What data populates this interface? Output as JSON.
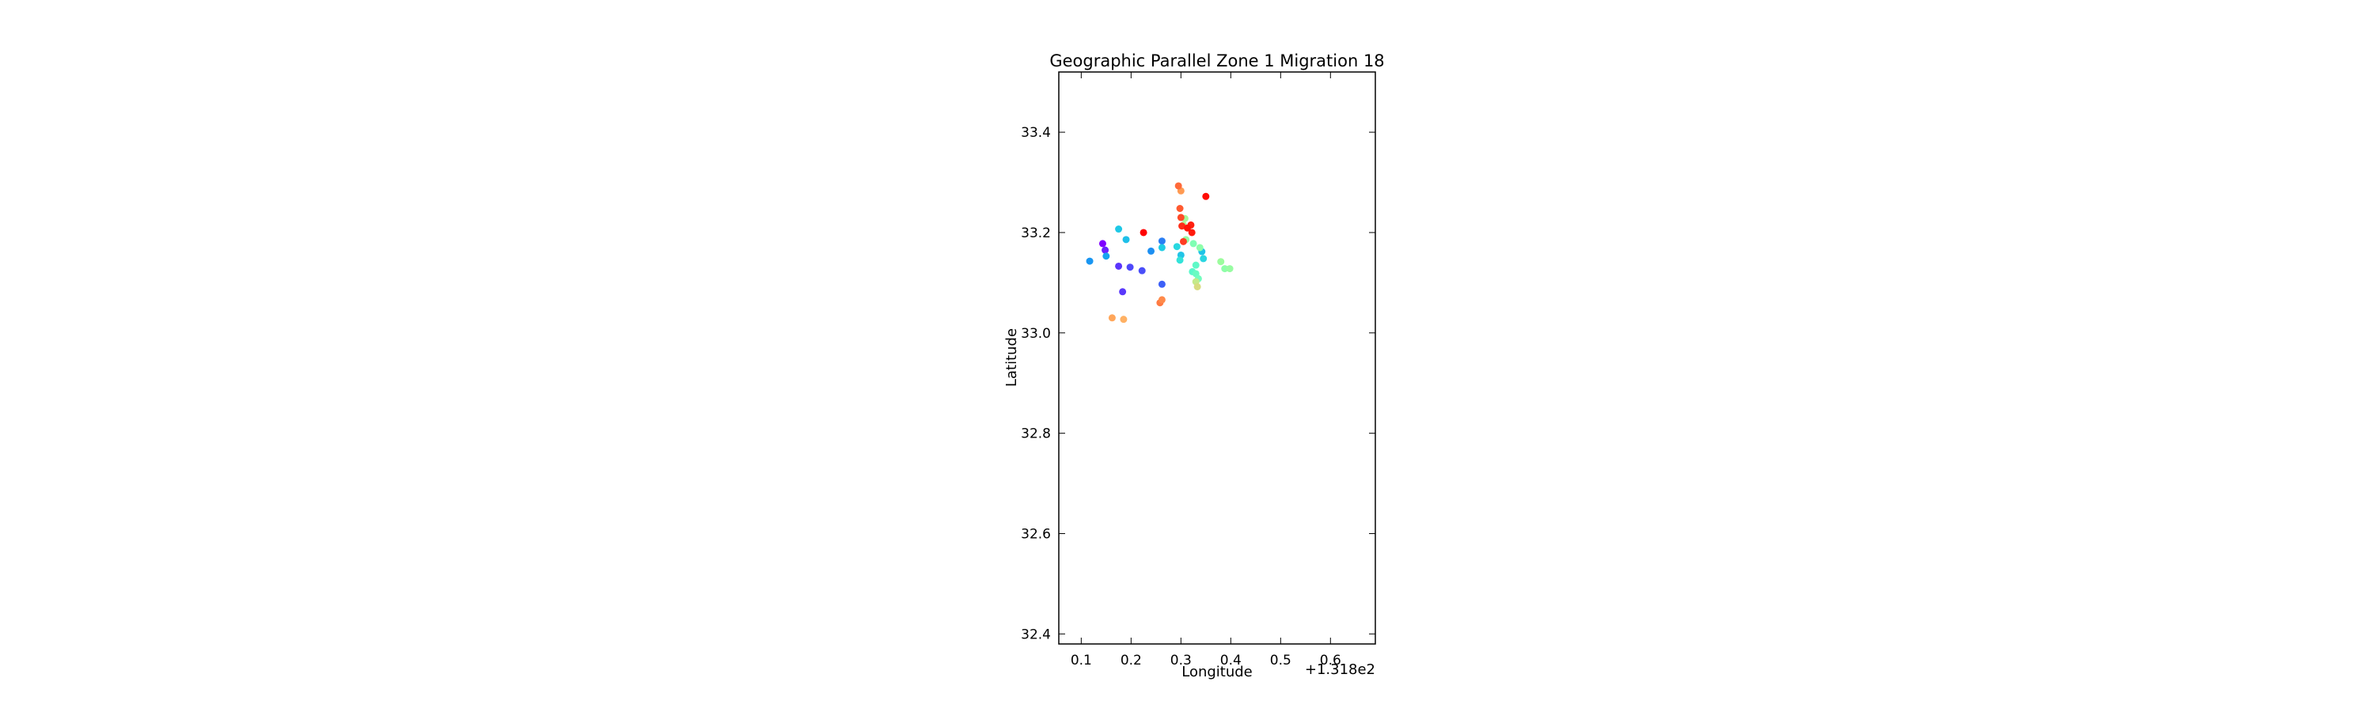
{
  "chart_data": {
    "type": "scatter",
    "title": "Geographic Parallel Zone 1 Migration 18",
    "xlabel": "Longitude",
    "ylabel": "Latitude",
    "x_offset_label": "+1.318e2",
    "xlim": [
      0.055,
      0.69
    ],
    "ylim": [
      32.38,
      33.52
    ],
    "xticks": [
      0.1,
      0.2,
      0.3,
      0.4,
      0.5,
      0.6
    ],
    "xtick_labels": [
      "0.1",
      "0.2",
      "0.3",
      "0.4",
      "0.5",
      "0.6"
    ],
    "yticks": [
      32.4,
      32.6,
      32.8,
      33.0,
      33.2,
      33.4
    ],
    "ytick_labels": [
      "32.4",
      "32.6",
      "32.8",
      "33.0",
      "33.2",
      "33.4"
    ],
    "grid": false,
    "colormap": "rainbow",
    "points": [
      {
        "x": 0.143,
        "y": 33.178,
        "color": "#7f00ff"
      },
      {
        "x": 0.148,
        "y": 33.165,
        "color": "#6a22fe"
      },
      {
        "x": 0.175,
        "y": 33.133,
        "color": "#5b35fc"
      },
      {
        "x": 0.183,
        "y": 33.082,
        "color": "#5a38fb"
      },
      {
        "x": 0.198,
        "y": 33.131,
        "color": "#4e48fa"
      },
      {
        "x": 0.222,
        "y": 33.124,
        "color": "#4a4ef9"
      },
      {
        "x": 0.262,
        "y": 33.097,
        "color": "#3d60f7"
      },
      {
        "x": 0.117,
        "y": 33.143,
        "color": "#1996f2"
      },
      {
        "x": 0.24,
        "y": 33.163,
        "color": "#1c8ff2"
      },
      {
        "x": 0.262,
        "y": 33.183,
        "color": "#2a7ef4"
      },
      {
        "x": 0.15,
        "y": 33.153,
        "color": "#16a4ef"
      },
      {
        "x": 0.175,
        "y": 33.207,
        "color": "#1ec8e6"
      },
      {
        "x": 0.19,
        "y": 33.186,
        "color": "#1fc0e9"
      },
      {
        "x": 0.262,
        "y": 33.17,
        "color": "#1fcde5"
      },
      {
        "x": 0.292,
        "y": 33.172,
        "color": "#29d8e0"
      },
      {
        "x": 0.3,
        "y": 33.155,
        "color": "#22c4e7"
      },
      {
        "x": 0.298,
        "y": 33.145,
        "color": "#33e3d9"
      },
      {
        "x": 0.342,
        "y": 33.162,
        "color": "#1ec4e8"
      },
      {
        "x": 0.345,
        "y": 33.148,
        "color": "#2ad6e1"
      },
      {
        "x": 0.323,
        "y": 33.122,
        "color": "#5af8cb"
      },
      {
        "x": 0.33,
        "y": 33.135,
        "color": "#60f9c8"
      },
      {
        "x": 0.33,
        "y": 33.118,
        "color": "#6afbc3"
      },
      {
        "x": 0.335,
        "y": 33.108,
        "color": "#74fdbe"
      },
      {
        "x": 0.325,
        "y": 33.178,
        "color": "#80feb3"
      },
      {
        "x": 0.338,
        "y": 33.17,
        "color": "#8dfeaa"
      },
      {
        "x": 0.31,
        "y": 33.186,
        "color": "#96fda3"
      },
      {
        "x": 0.308,
        "y": 33.228,
        "color": "#a6f89a"
      },
      {
        "x": 0.305,
        "y": 33.215,
        "color": "#b2f295"
      },
      {
        "x": 0.38,
        "y": 33.142,
        "color": "#9cfc9d"
      },
      {
        "x": 0.388,
        "y": 33.128,
        "color": "#8efea8"
      },
      {
        "x": 0.398,
        "y": 33.128,
        "color": "#98fca2"
      },
      {
        "x": 0.33,
        "y": 33.102,
        "color": "#c4ea8a"
      },
      {
        "x": 0.333,
        "y": 33.092,
        "color": "#d8dc80"
      },
      {
        "x": 0.162,
        "y": 33.03,
        "color": "#ffa65a"
      },
      {
        "x": 0.185,
        "y": 33.027,
        "color": "#ffb164"
      },
      {
        "x": 0.258,
        "y": 33.06,
        "color": "#ff7a42"
      },
      {
        "x": 0.262,
        "y": 33.066,
        "color": "#ff8a4a"
      },
      {
        "x": 0.3,
        "y": 33.283,
        "color": "#ff9a52"
      },
      {
        "x": 0.295,
        "y": 33.293,
        "color": "#ff6a3a"
      },
      {
        "x": 0.298,
        "y": 33.248,
        "color": "#ff5a30"
      },
      {
        "x": 0.3,
        "y": 33.23,
        "color": "#ff4a28"
      },
      {
        "x": 0.305,
        "y": 33.182,
        "color": "#ff3d22"
      },
      {
        "x": 0.302,
        "y": 33.213,
        "color": "#ff2e18"
      },
      {
        "x": 0.32,
        "y": 33.215,
        "color": "#ff2010"
      },
      {
        "x": 0.322,
        "y": 33.2,
        "color": "#ff1a0c"
      },
      {
        "x": 0.313,
        "y": 33.209,
        "color": "#ff1608"
      },
      {
        "x": 0.225,
        "y": 33.2,
        "color": "#ff0000"
      },
      {
        "x": 0.35,
        "y": 33.272,
        "color": "#ff0c04"
      }
    ]
  }
}
